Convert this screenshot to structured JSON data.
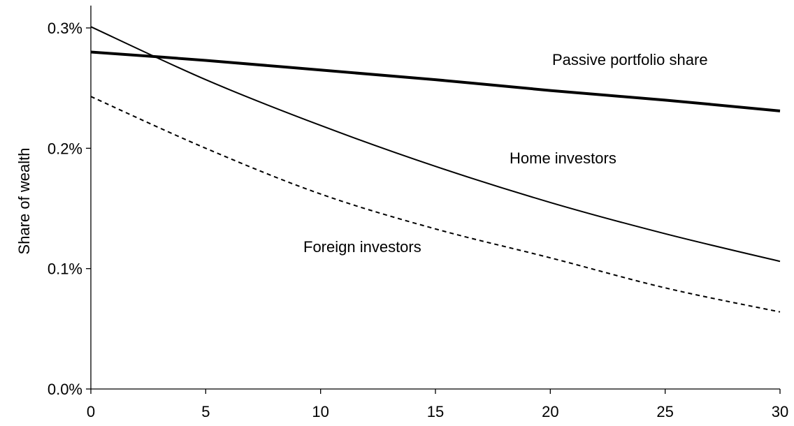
{
  "chart_data": {
    "type": "line",
    "title": "",
    "xlabel": "",
    "ylabel": "Share of wealth",
    "xlim": [
      0,
      30
    ],
    "ylim": [
      0.0,
      0.3
    ],
    "x_ticks": [
      "0",
      "5",
      "10",
      "15",
      "20",
      "25",
      "30"
    ],
    "y_ticks": [
      "0.0%",
      "0.1%",
      "0.2%",
      "0.3%"
    ],
    "grid": false,
    "legend": "none",
    "x": [
      0,
      5,
      10,
      15,
      20,
      25,
      30
    ],
    "series": [
      {
        "name": "Passive portfolio share",
        "values": [
          0.28,
          0.273,
          0.265,
          0.257,
          0.248,
          0.24,
          0.231
        ],
        "style": "solid",
        "weight": "bold",
        "color": "#000000"
      },
      {
        "name": "Home investors",
        "values": [
          0.301,
          0.257,
          0.219,
          0.185,
          0.155,
          0.129,
          0.106
        ],
        "style": "solid",
        "weight": "normal",
        "color": "#000000"
      },
      {
        "name": "Foreign investors",
        "values": [
          0.243,
          0.2,
          0.162,
          0.133,
          0.109,
          0.084,
          0.064
        ],
        "style": "dashed",
        "weight": "normal",
        "color": "#000000"
      }
    ]
  }
}
